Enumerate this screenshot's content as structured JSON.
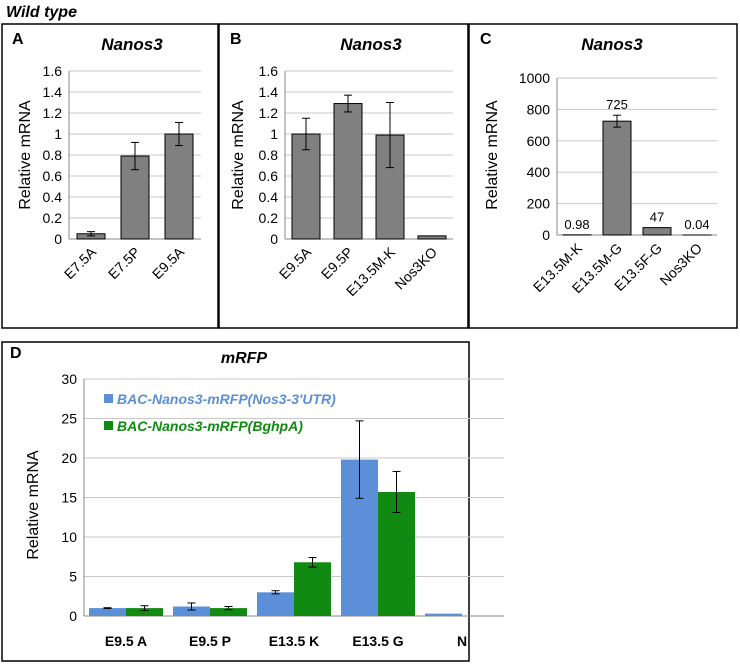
{
  "figure_title": "Wild type",
  "chart_data": [
    {
      "panel": "A",
      "type": "bar",
      "title": "Nanos3",
      "ylabel": "Relative mRNA",
      "categories": [
        "E7.5A",
        "E7.5P",
        "E9.5A"
      ],
      "values": [
        0.05,
        0.79,
        1.0
      ],
      "errors": [
        0.02,
        0.13,
        0.11
      ],
      "ylim": [
        0,
        1.6
      ],
      "yticks": [
        "0",
        "0.2",
        "0.4",
        "0.6",
        "0.8",
        "1",
        "1.2",
        "1.4",
        "1.6"
      ],
      "grid": true,
      "bar_color": "#808080"
    },
    {
      "panel": "B",
      "type": "bar",
      "title": "Nanos3",
      "ylabel": "Relative mRNA",
      "categories": [
        "E9.5A",
        "E9.5P",
        "E13.5M-K",
        "Nos3KO"
      ],
      "values": [
        1.0,
        1.29,
        0.99,
        0.03
      ],
      "errors": [
        0.15,
        0.08,
        0.31,
        0
      ],
      "ylim": [
        0,
        1.6
      ],
      "yticks": [
        "0",
        "0.2",
        "0.4",
        "0.6",
        "0.8",
        "1",
        "1.2",
        "1.4",
        "1.6"
      ],
      "grid": true,
      "bar_color": "#808080"
    },
    {
      "panel": "C",
      "type": "bar",
      "title": "Nanos3",
      "ylabel": "Relative mRNA",
      "categories": [
        "E13.5M-K",
        "E13.5M-G",
        "E13.5F-G",
        "Nos3KO"
      ],
      "values": [
        0.98,
        725,
        47,
        0.04
      ],
      "errors": [
        0,
        38,
        0,
        0
      ],
      "data_labels": [
        "0.98",
        "725",
        "47",
        "0.04"
      ],
      "ylim": [
        0,
        1000
      ],
      "yticks": [
        "0",
        "200",
        "400",
        "600",
        "800",
        "1000"
      ],
      "grid": true,
      "bar_color": "#808080"
    },
    {
      "panel": "D",
      "type": "bar",
      "title": "mRFP",
      "ylabel": "Relative mRNA",
      "categories": [
        "E9.5 A",
        "E9.5 P",
        "E13.5 K",
        "E13.5 G",
        "N"
      ],
      "ylim": [
        0,
        30
      ],
      "yticks": [
        "0",
        "5",
        "10",
        "15",
        "20",
        "25",
        "30"
      ],
      "grid": true,
      "legend_position": "top-left",
      "series": [
        {
          "name": "BAC-Nanos3-mRFP(Nos3-3'UTR)",
          "color": "#5b8fd8",
          "values": [
            1.0,
            1.2,
            3.0,
            19.8,
            0.3
          ],
          "errors": [
            0.05,
            0.45,
            0.2,
            4.9,
            0
          ]
        },
        {
          "name": "BAC-Nanos3-mRFP(BghpA)",
          "color": "#108a10",
          "values": [
            1.0,
            1.0,
            6.8,
            15.7,
            null
          ],
          "errors": [
            0.3,
            0.2,
            0.6,
            2.6,
            0
          ]
        }
      ]
    }
  ]
}
